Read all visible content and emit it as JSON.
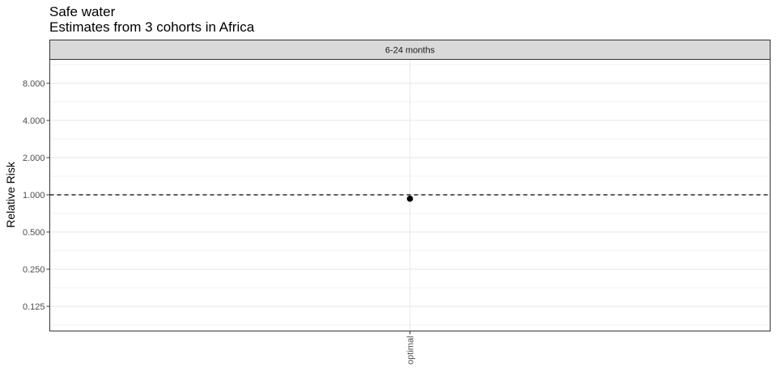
{
  "chart_data": {
    "type": "scatter",
    "title": "Safe water",
    "subtitle": "Estimates from 3 cohorts in Africa",
    "facet_label": "6-24 months",
    "xlabel": "",
    "ylabel": "Relative Risk",
    "y_scale": "log2",
    "y_ticks": [
      {
        "value": 0.125,
        "label": "0.125"
      },
      {
        "value": 0.25,
        "label": "0.250"
      },
      {
        "value": 0.5,
        "label": "0.500"
      },
      {
        "value": 1,
        "label": "1.000"
      },
      {
        "value": 2,
        "label": "2.000"
      },
      {
        "value": 4,
        "label": "4.000"
      },
      {
        "value": 8,
        "label": "8.000"
      }
    ],
    "ylim": [
      0.1,
      12
    ],
    "categories": [
      "optimal"
    ],
    "points": [
      {
        "category": "optimal",
        "y": 0.93
      }
    ],
    "reference_line": {
      "y": 1,
      "style": "dashed"
    },
    "grid": true,
    "colors": {
      "point": "#000000",
      "strip_fill": "#d9d9d9",
      "grid": "#ebebeb"
    }
  }
}
